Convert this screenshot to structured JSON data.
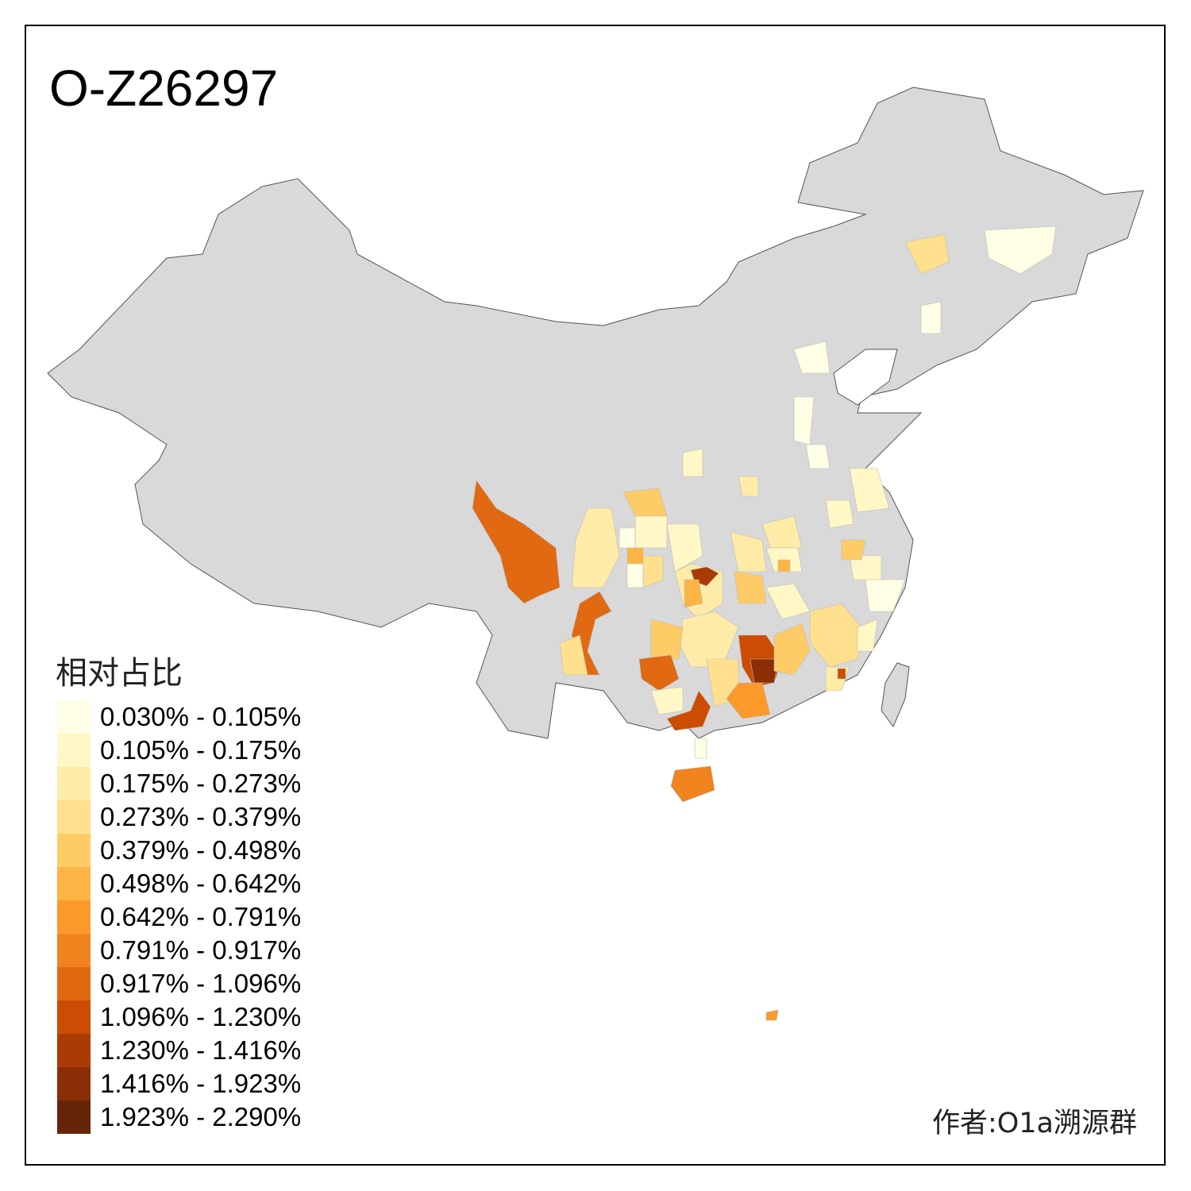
{
  "title": "O-Z26297",
  "legend": {
    "title": "相对占比",
    "items": [
      {
        "label": "0.030% - 0.105%",
        "color": "#FFFFE5"
      },
      {
        "label": "0.105% - 0.175%",
        "color": "#FFF7C6"
      },
      {
        "label": "0.175% - 0.273%",
        "color": "#FEEBA8"
      },
      {
        "label": "0.273% - 0.379%",
        "color": "#FEE08E"
      },
      {
        "label": "0.379% - 0.498%",
        "color": "#FECC66"
      },
      {
        "label": "0.498% - 0.642%",
        "color": "#FDB444"
      },
      {
        "label": "0.642% - 0.791%",
        "color": "#FB992B"
      },
      {
        "label": "0.791% - 0.917%",
        "color": "#F1831F"
      },
      {
        "label": "0.917% - 1.096%",
        "color": "#E06912"
      },
      {
        "label": "1.096% - 1.230%",
        "color": "#CC4C03"
      },
      {
        "label": "1.230% - 1.416%",
        "color": "#AA3B04"
      },
      {
        "label": "1.416% - 1.923%",
        "color": "#8A2E05"
      },
      {
        "label": "1.923% - 2.290%",
        "color": "#662508"
      }
    ]
  },
  "author": "作者:O1a溯源群",
  "colors": {
    "no_data": "#D9D9D9",
    "border": "#555555"
  }
}
